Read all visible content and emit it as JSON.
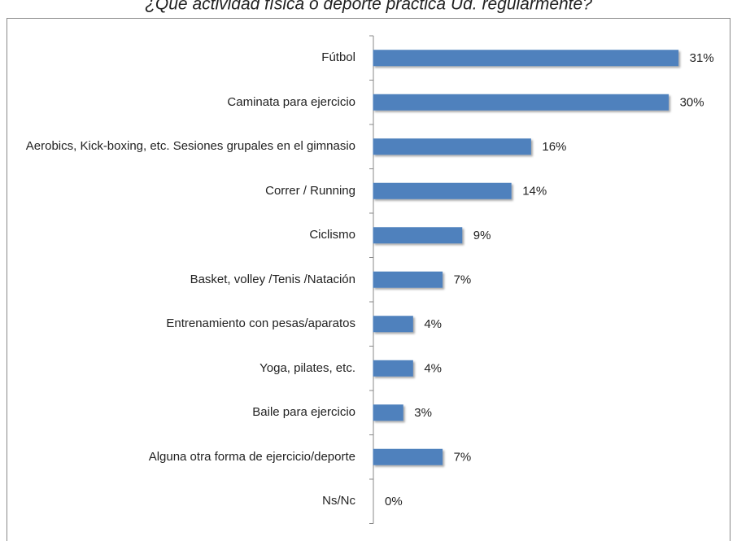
{
  "chart_data": {
    "type": "bar",
    "orientation": "horizontal",
    "title": "¿Qué actividad física o deporte práctica Ud. regularmente?",
    "categories": [
      "Fútbol",
      "Caminata para ejercicio",
      "Aerobics, Kick-boxing, etc. Sesiones grupales en el gimnasio",
      "Correr / Running",
      "Ciclismo",
      "Basket, volley /Tenis /Natación",
      "Entrenamiento con pesas/aparatos",
      "Yoga, pilates, etc.",
      "Baile para ejercicio",
      "Alguna otra forma de ejercicio/deporte",
      "Ns/Nc"
    ],
    "values": [
      31,
      30,
      16,
      14,
      9,
      7,
      4,
      4,
      3,
      7,
      0
    ],
    "value_labels": [
      "31%",
      "30%",
      "16%",
      "14%",
      "9%",
      "7%",
      "4%",
      "4%",
      "3%",
      "7%",
      "0%"
    ],
    "color": "#4f81bd",
    "xlim": [
      0,
      35
    ]
  }
}
